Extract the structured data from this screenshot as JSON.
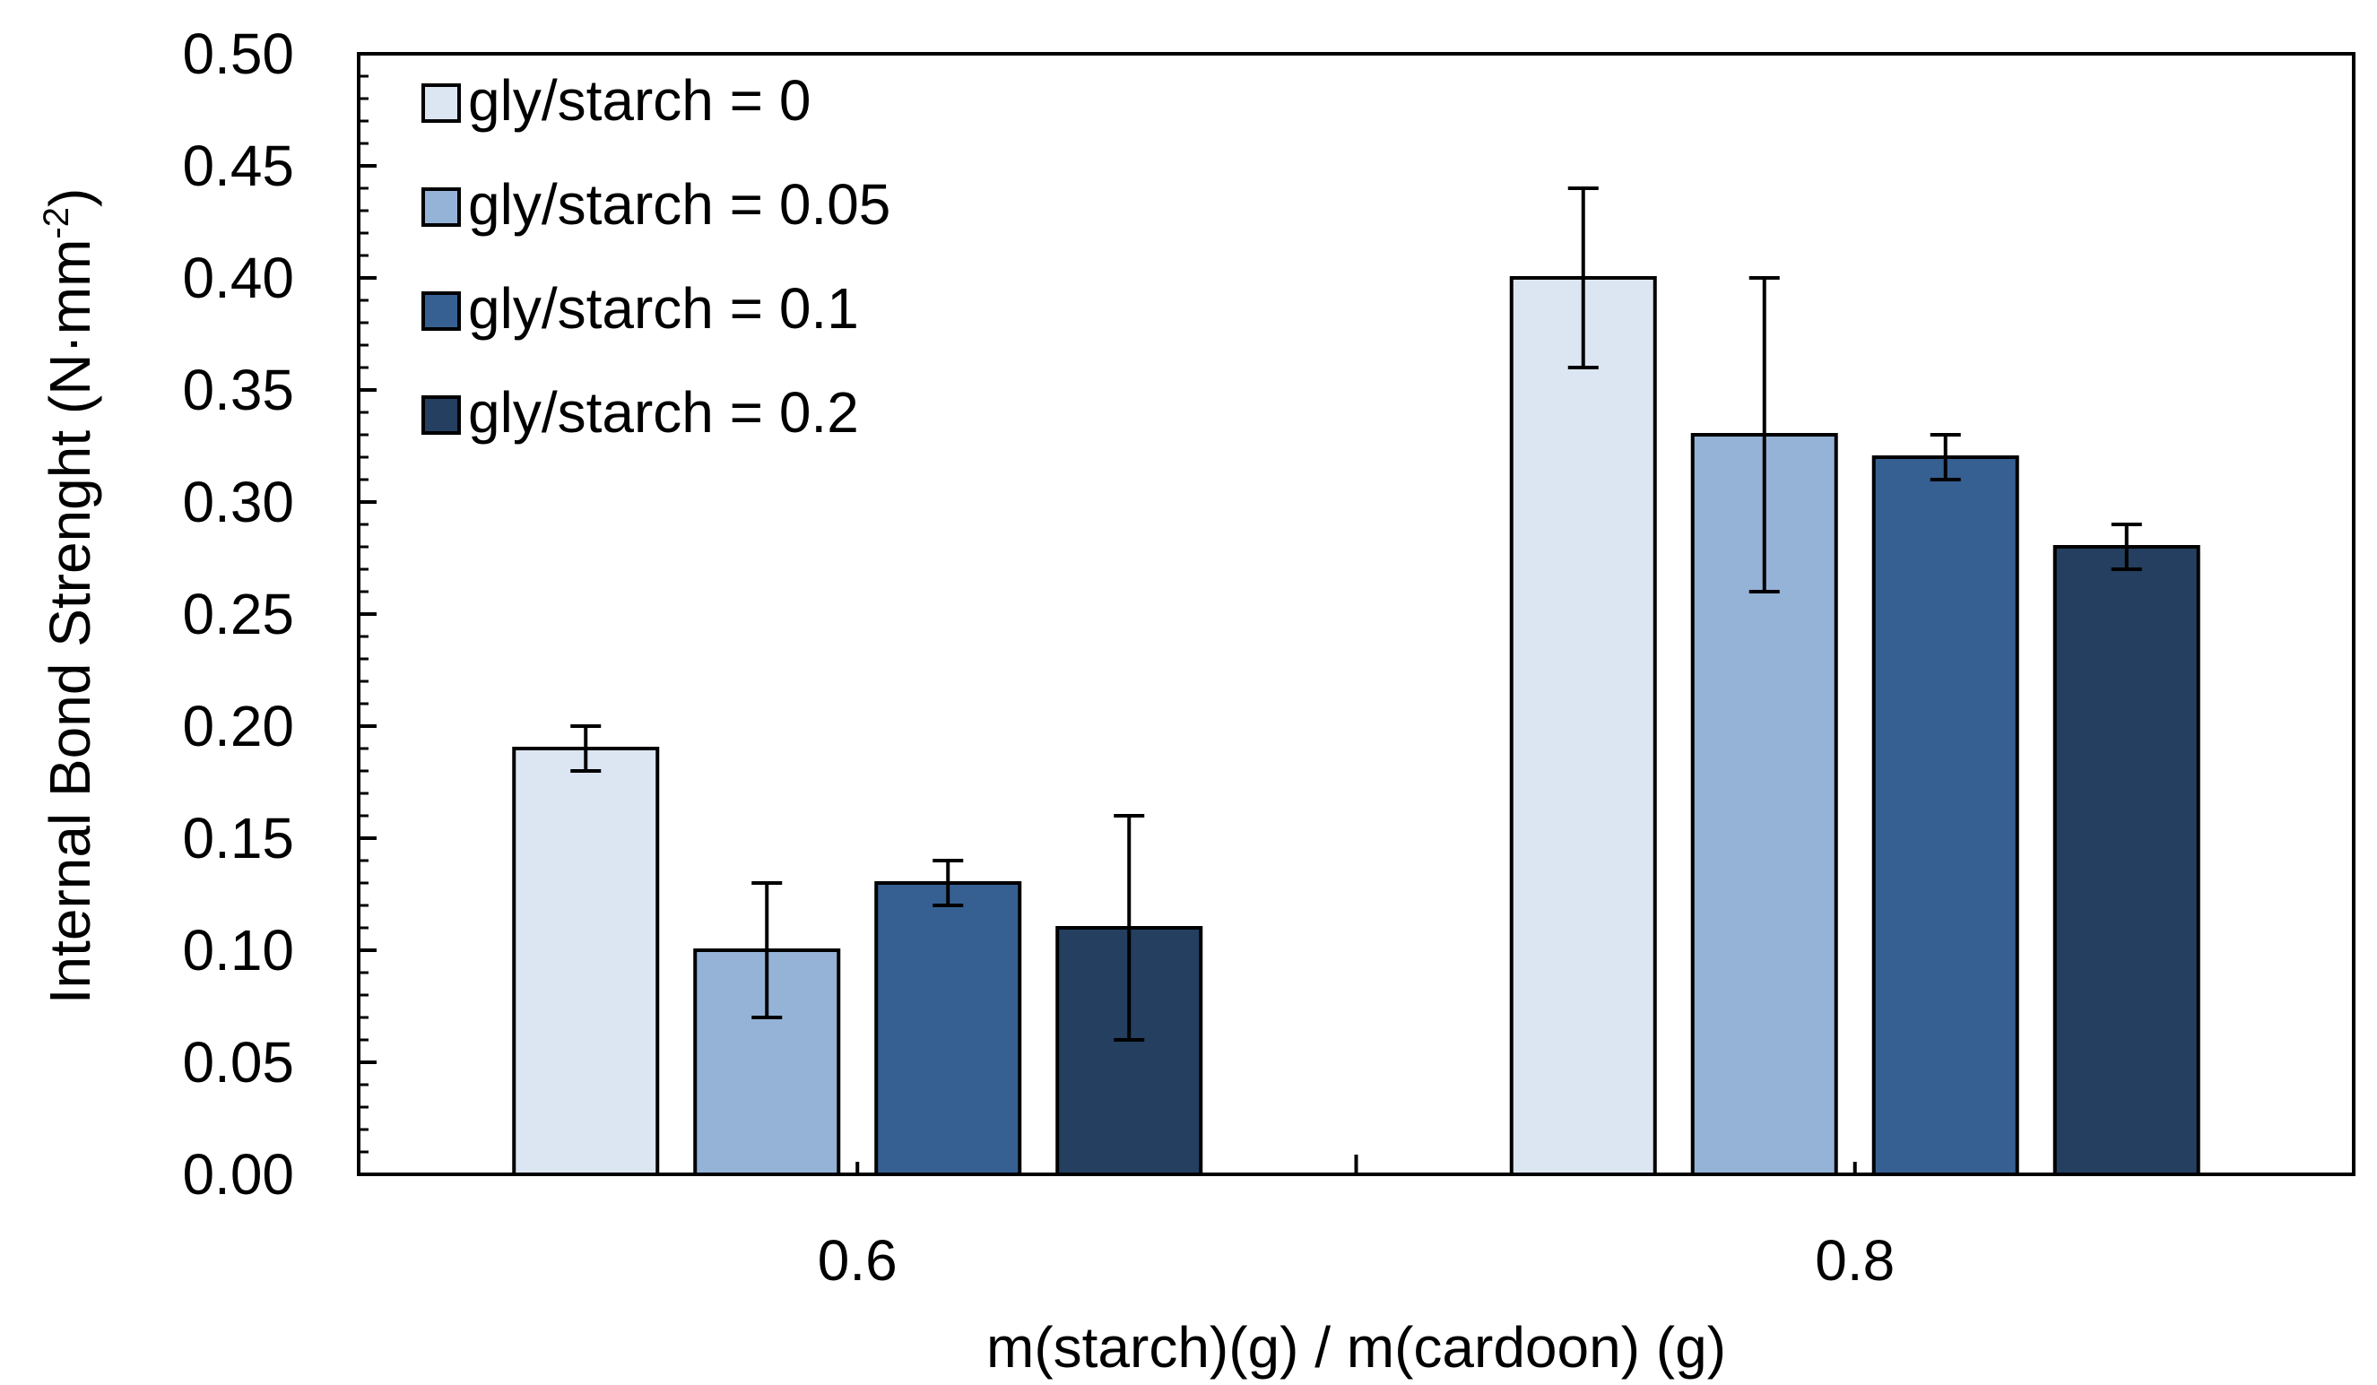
{
  "chart_data": {
    "type": "bar",
    "title": "",
    "xlabel": "m(starch)(g) / m(cardoon) (g)",
    "ylabel_main": "Internal Bond Strenght (N·mm",
    "ylabel_sup": "-2",
    "ylabel_end": ")",
    "ylim": [
      0,
      0.5
    ],
    "ytick_step": 0.05,
    "yticks": [
      "0.00",
      "0.05",
      "0.10",
      "0.15",
      "0.20",
      "0.25",
      "0.30",
      "0.35",
      "0.40",
      "0.45",
      "0.50"
    ],
    "categories": [
      "0.6",
      "0.8"
    ],
    "legend_position": "top-left",
    "grid": false,
    "series": [
      {
        "name": "gly/starch = 0",
        "color": "#dce6f2",
        "values": [
          0.19,
          0.4
        ],
        "errors": [
          0.01,
          0.04
        ]
      },
      {
        "name": "gly/starch = 0.05",
        "color": "#95b3d7",
        "values": [
          0.1,
          0.33
        ],
        "errors": [
          0.03,
          0.07
        ]
      },
      {
        "name": "gly/starch = 0.1",
        "color": "#366092",
        "values": [
          0.13,
          0.32
        ],
        "errors": [
          0.01,
          0.01
        ]
      },
      {
        "name": "gly/starch = 0.2",
        "color": "#243f60",
        "values": [
          0.11,
          0.28
        ],
        "errors": [
          0.05,
          0.01
        ]
      }
    ]
  }
}
